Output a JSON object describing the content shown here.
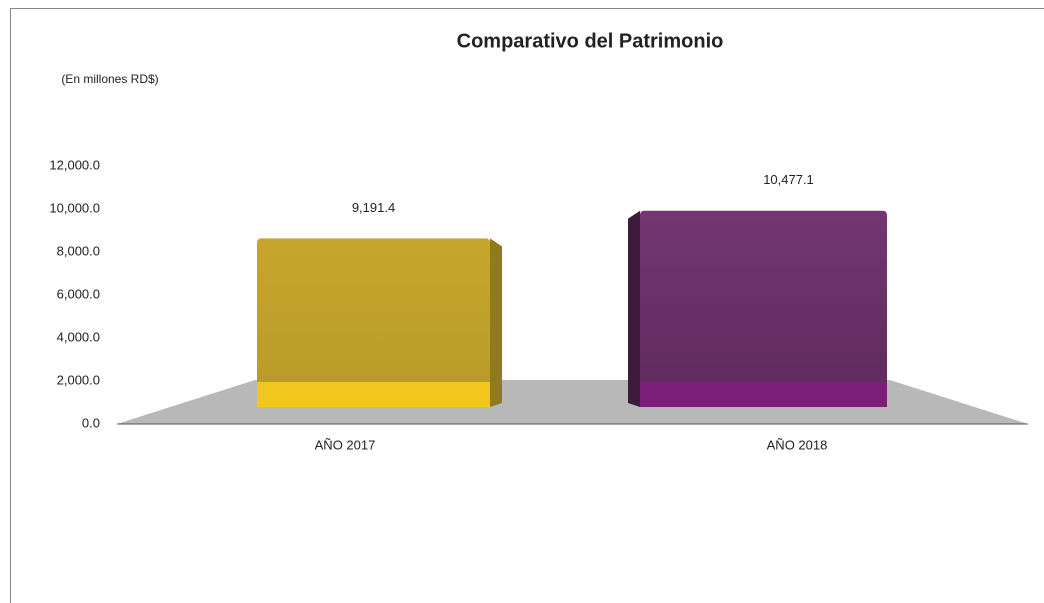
{
  "chart_data": {
    "type": "bar3d",
    "title": "Comparativo del Patrimonio",
    "subtitle": "(En millones RD$)",
    "categories": [
      "AÑO 2017",
      "AÑO 2018"
    ],
    "series": [
      {
        "name": null,
        "colors": [
          "#c0a02a",
          "#6b2d68"
        ],
        "values": [
          9191.4,
          10477.1
        ],
        "value_labels": [
          "9,191.4",
          "10,477.1"
        ]
      }
    ],
    "ylim": [
      0,
      12000
    ],
    "yticks": [
      {
        "value": 0,
        "label": "0.0"
      },
      {
        "value": 2000,
        "label": "2,000.0"
      },
      {
        "value": 4000,
        "label": "4,000.0"
      },
      {
        "value": 6000,
        "label": "6,000.0"
      },
      {
        "value": 8000,
        "label": "8,000.0"
      },
      {
        "value": 10000,
        "label": "10,000.0"
      },
      {
        "value": 12000,
        "label": "12,000.0"
      }
    ],
    "grid": false
  }
}
